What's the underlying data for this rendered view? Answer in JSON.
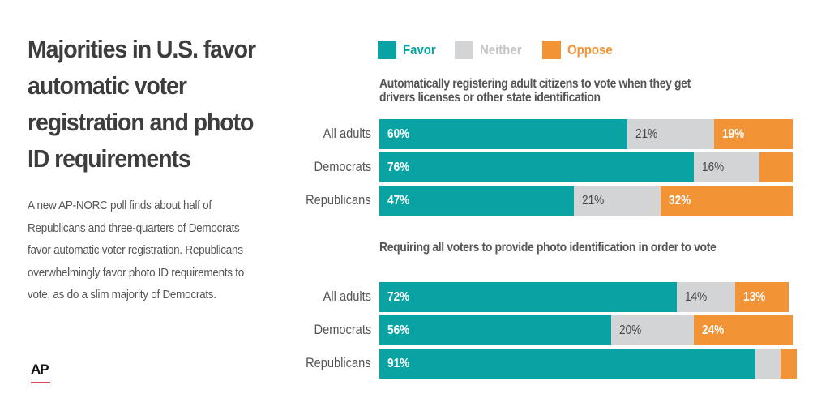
{
  "title": "Majorities in U.S. favor automatic voter registration and photo ID requirements",
  "description": "A new AP-NORC poll finds about half of Republicans and three-quarters of Democrats favor automatic voter registration. Republicans overwhelmingly favor photo ID requirements to vote, as do a slim majority of Democrats.",
  "source_logo": "AP",
  "colors": {
    "favor": "#0aa3a3",
    "neither": "#d3d4d6",
    "oppose": "#f29436",
    "title": "#3d3d3d"
  },
  "chart_data": {
    "type": "bar",
    "orientation": "horizontal",
    "stacked": true,
    "legend": {
      "position": "top",
      "entries": [
        {
          "key": "favor",
          "label": "Favor"
        },
        {
          "key": "neither",
          "label": "Neither"
        },
        {
          "key": "oppose",
          "label": "Oppose"
        }
      ]
    },
    "xlim": [
      0,
      100
    ],
    "units": "percent",
    "panels": [
      {
        "title": "Automatically registering adult citizens to vote when they get drivers licenses or other state identification",
        "categories": [
          "All adults",
          "Democrats",
          "Republicans"
        ],
        "series": [
          {
            "name": "Favor",
            "values": [
              60,
              76,
              47
            ],
            "labels": [
              "60%",
              "76%",
              "47%"
            ]
          },
          {
            "name": "Neither",
            "values": [
              21,
              16,
              21
            ],
            "labels": [
              "21%",
              "16%",
              "21%"
            ]
          },
          {
            "name": "Oppose",
            "values": [
              19,
              8,
              32
            ],
            "labels": [
              "19%",
              "",
              "32%"
            ]
          }
        ]
      },
      {
        "title": "Requiring all voters to provide photo identification in order to vote",
        "categories": [
          "All adults",
          "Democrats",
          "Republicans"
        ],
        "series": [
          {
            "name": "Favor",
            "values": [
              72,
              56,
              91
            ],
            "labels": [
              "72%",
              "56%",
              "91%"
            ]
          },
          {
            "name": "Neither",
            "values": [
              14,
              20,
              6
            ],
            "labels": [
              "14%",
              "20%",
              ""
            ]
          },
          {
            "name": "Oppose",
            "values": [
              13,
              24,
              4
            ],
            "labels": [
              "13%",
              "24%",
              ""
            ]
          }
        ]
      }
    ]
  }
}
